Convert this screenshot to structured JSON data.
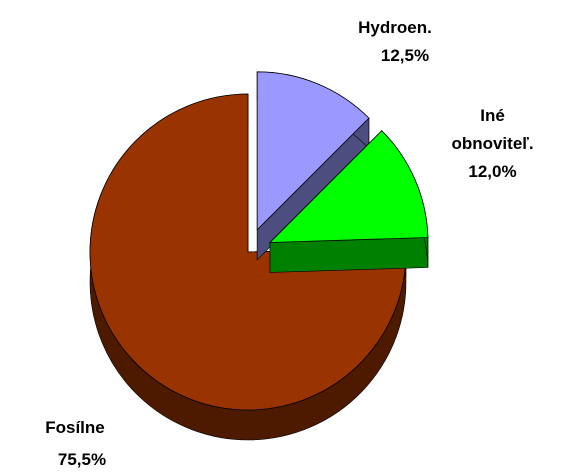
{
  "chart_data": {
    "type": "pie",
    "categories": [
      "Hydroen.",
      "Iné obnoviteľ.",
      "Fosílne"
    ],
    "values": [
      12.5,
      12.0,
      75.5
    ],
    "value_labels": [
      "12,5%",
      "12,0%",
      "75,5%"
    ],
    "colors": [
      "#9999ff",
      "#00ff00",
      "#993300"
    ]
  }
}
